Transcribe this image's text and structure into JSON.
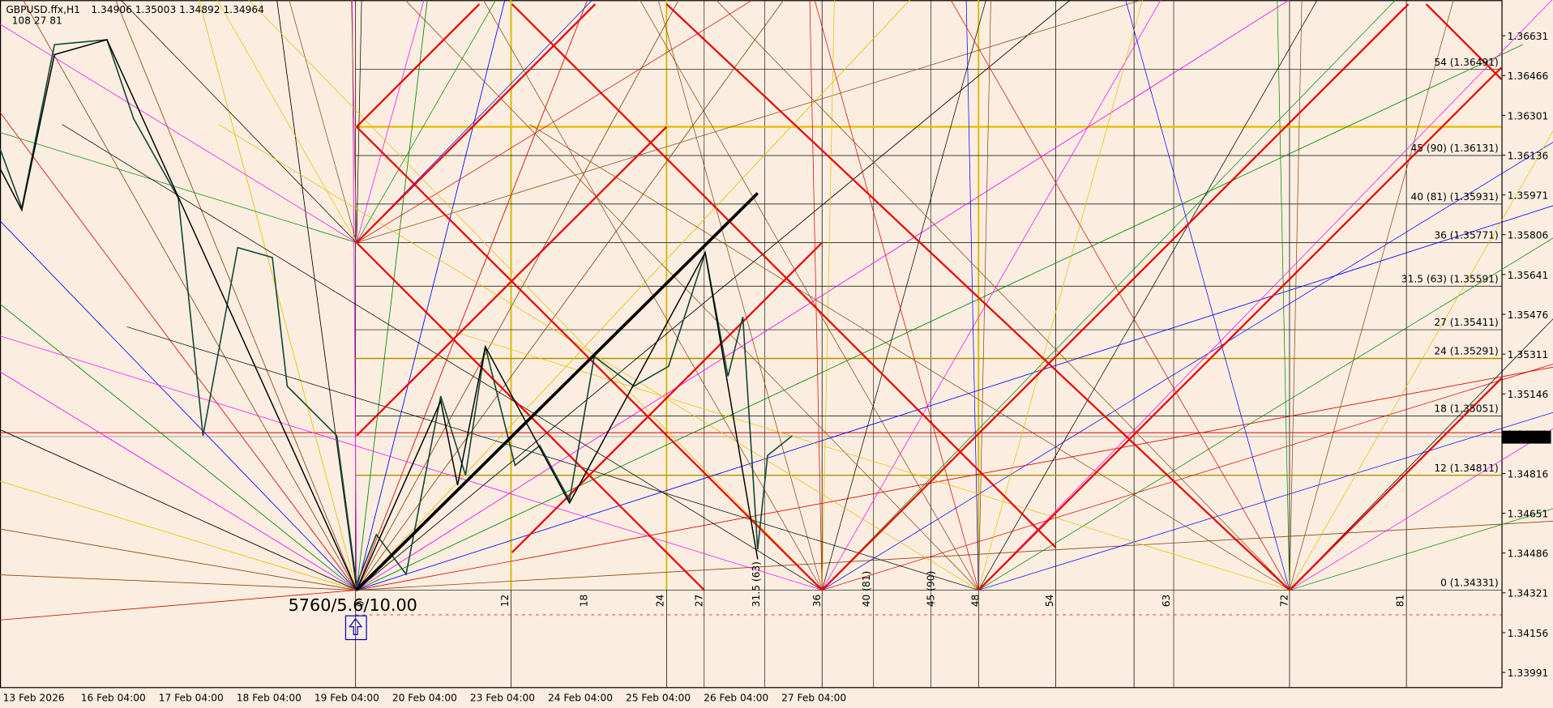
{
  "header": {
    "symbol": "GBPUSD.ffx,H1",
    "ohlc": "1.34906 1.35003 1.34892 1.34964",
    "counts": "108  27  81"
  },
  "price_axis": [
    "1.36631",
    "1.36466",
    "1.36301",
    "1.36136",
    "1.35971",
    "1.35806",
    "1.35641",
    "1.35476",
    "1.35311",
    "1.35146",
    "1.34981",
    "1.34816",
    "1.34651",
    "1.34486",
    "1.34321",
    "1.34156",
    "1.33991"
  ],
  "current_price": "1.34964",
  "time_axis": [
    "13 Feb 2026",
    "16 Feb 04:00",
    "17 Feb 04:00",
    "18 Feb 04:00",
    "19 Feb 04:00",
    "20 Feb 04:00",
    "23 Feb 04:00",
    "24 Feb 04:00",
    "25 Feb 04:00",
    "26 Feb 04:00",
    "27 Feb 04:00"
  ],
  "level_labels": [
    "54 (1.36491)",
    "45 (90) (1.36131)",
    "40 (81) (1.35931)",
    "36 (1.35771)",
    "31.5 (63) (1.35591)",
    "27 (1.35411)",
    "24 (1.35291)",
    "18 (1.35051)",
    "12 (1.34811)",
    "0 (1.34331)"
  ],
  "time_labels": [
    "0",
    "12",
    "18",
    "24",
    "27",
    "31.5 (63)",
    "36",
    "40 (81)",
    "45 (90)",
    "48",
    "54",
    "63",
    "72",
    "81"
  ],
  "info_text": "5760/5.6/10.00"
}
